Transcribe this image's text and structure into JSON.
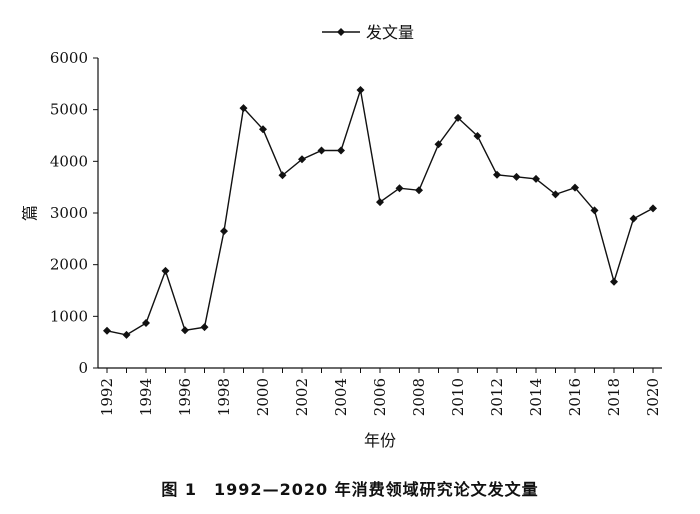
{
  "caption": "图 1　1992—2020 年消费领域研究论文发文量",
  "chart_data": {
    "type": "line",
    "title": "",
    "xlabel": "年份",
    "ylabel": "篇",
    "xlim": [
      1992,
      2020
    ],
    "ylim": [
      0,
      6000
    ],
    "yticks": [
      0,
      1000,
      2000,
      3000,
      4000,
      5000,
      6000
    ],
    "xtick_labels": [
      "1992",
      "1994",
      "1996",
      "1998",
      "2000",
      "2002",
      "2004",
      "2006",
      "2008",
      "2010",
      "2012",
      "2014",
      "2016",
      "2018",
      "2020"
    ],
    "legend": "top-center",
    "grid": false,
    "series": [
      {
        "name": "发文量",
        "color": "#111111",
        "marker": "diamond",
        "x": [
          1992,
          1993,
          1994,
          1995,
          1996,
          1997,
          1998,
          1999,
          2000,
          2001,
          2002,
          2003,
          2004,
          2005,
          2006,
          2007,
          2008,
          2009,
          2010,
          2011,
          2012,
          2013,
          2014,
          2015,
          2016,
          2017,
          2018,
          2019,
          2020
        ],
        "values": [
          720,
          640,
          870,
          1880,
          730,
          790,
          2650,
          5030,
          4620,
          3730,
          4040,
          4210,
          4210,
          5380,
          3210,
          3480,
          3440,
          4330,
          4840,
          4490,
          3740,
          3700,
          3660,
          3360,
          3490,
          3050,
          1670,
          2890,
          3090
        ]
      }
    ]
  }
}
